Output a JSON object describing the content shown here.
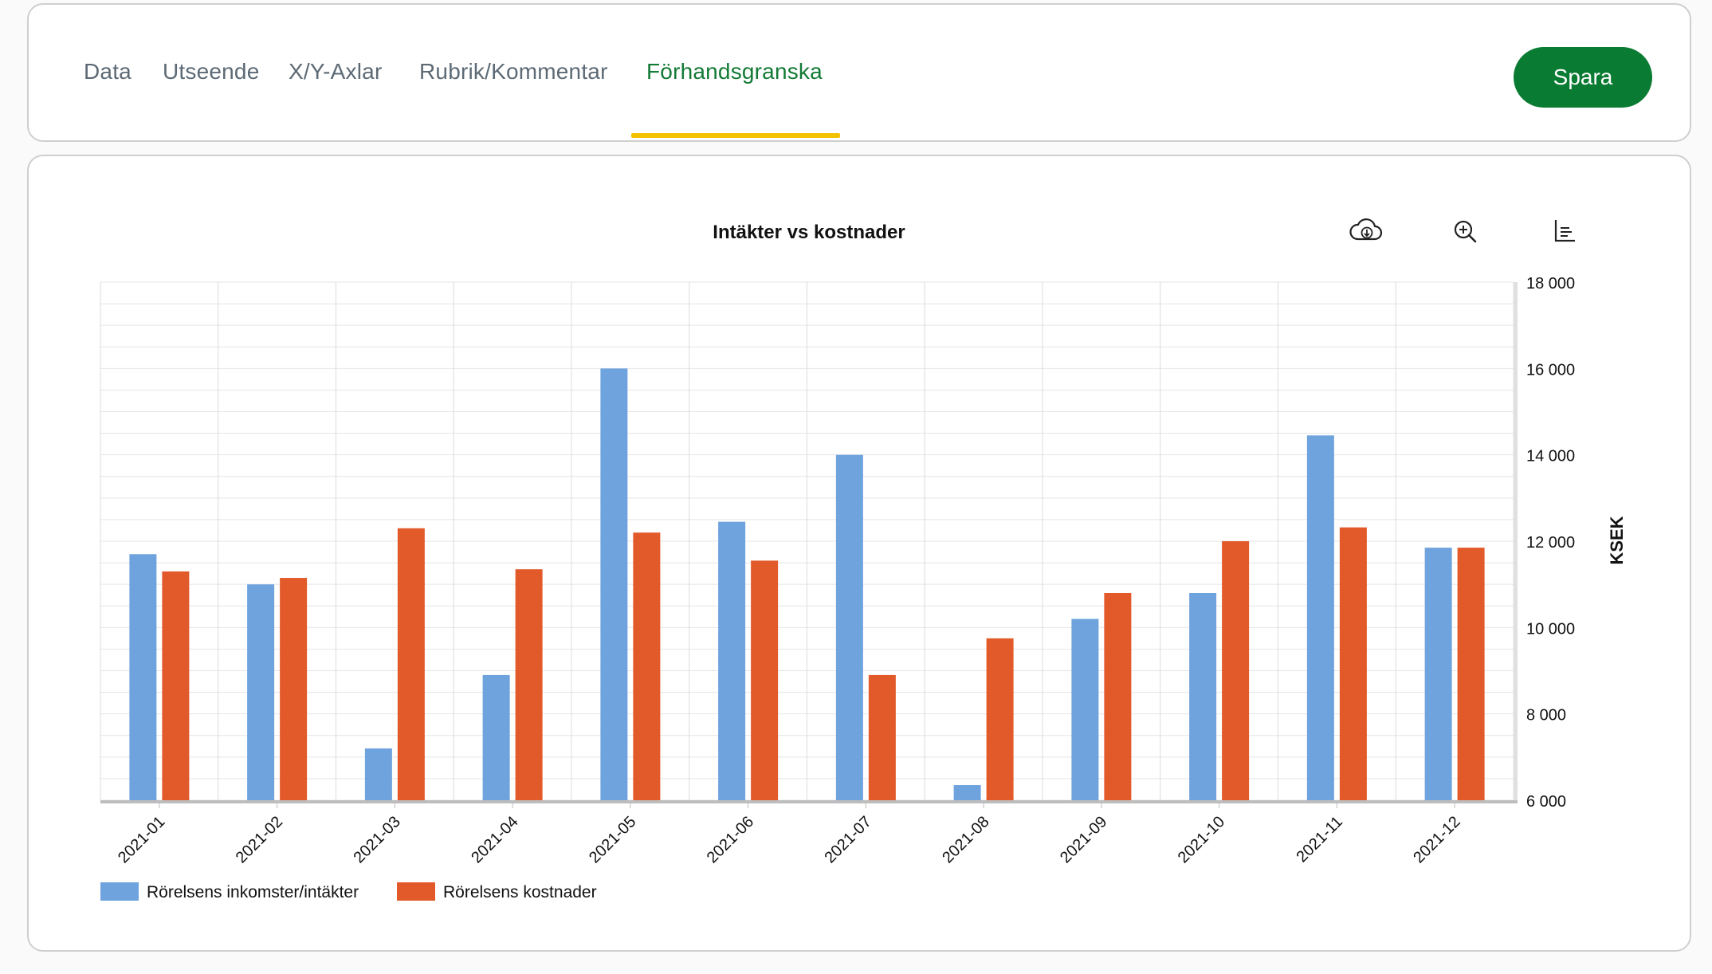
{
  "tabs": [
    {
      "label": "Data",
      "active": false
    },
    {
      "label": "Utseende",
      "active": false
    },
    {
      "label": "X/Y-Axlar",
      "active": false
    },
    {
      "label": "Rubrik/Kommentar",
      "active": false
    },
    {
      "label": "Förhandsgranska",
      "active": true
    }
  ],
  "save_label": "Spara",
  "colors": {
    "accent": "#137a35",
    "save_button": "#0a7b32",
    "tab_indicator": "#f2c200",
    "series_income": "#6fa3de",
    "series_costs": "#e25a2a"
  },
  "toolbar": {
    "download_icon": "cloud-download-icon",
    "zoom_icon": "zoom-in-icon",
    "menu_icon": "chart-menu-icon"
  },
  "chart_data": {
    "type": "bar",
    "title": "Intäkter vs kostnader",
    "xlabel": "",
    "ylabel": "KSEK",
    "y_axis_position": "right",
    "ylim": [
      6000,
      18000
    ],
    "yticks": [
      6000,
      8000,
      10000,
      12000,
      14000,
      16000,
      18000
    ],
    "ytick_labels": [
      "6 000",
      "8 000",
      "10 000",
      "12 000",
      "14 000",
      "16 000",
      "18 000"
    ],
    "grid": true,
    "legend_position": "bottom-left",
    "categories": [
      "2021-01",
      "2021-02",
      "2021-03",
      "2021-04",
      "2021-05",
      "2021-06",
      "2021-07",
      "2021-08",
      "2021-09",
      "2021-10",
      "2021-11",
      "2021-12"
    ],
    "series": [
      {
        "name": "Rörelsens inkomster/intäkter",
        "color": "#6fa3de",
        "values": [
          11700,
          11000,
          7200,
          8900,
          16000,
          12450,
          14000,
          6350,
          10200,
          10800,
          14450,
          11850
        ]
      },
      {
        "name": "Rörelsens kostnader",
        "color": "#e25a2a",
        "values": [
          11300,
          11150,
          12300,
          11350,
          12200,
          11550,
          8900,
          9750,
          10800,
          12000,
          12320,
          11850
        ]
      }
    ]
  }
}
